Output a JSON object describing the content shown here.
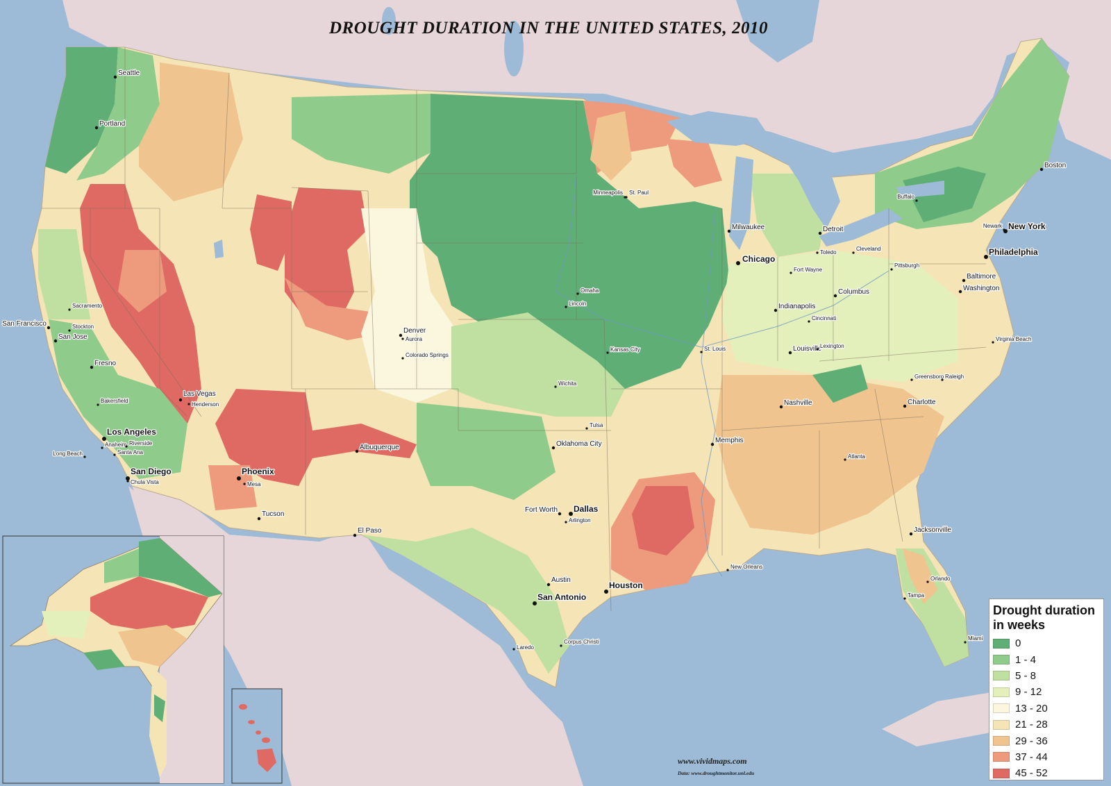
{
  "title": "DROUGHT DURATION IN THE UNITED STATES, 2010",
  "credits": {
    "site": "www.vividmaps.com",
    "source": "Data: www.droughtmonitor.unl.edu"
  },
  "legend": {
    "title_line1": "Drought duration",
    "title_line2": "in weeks",
    "classes": [
      {
        "label": "0",
        "color": "#5fae76"
      },
      {
        "label": "1 - 4",
        "color": "#8fcb8a"
      },
      {
        "label": "5 - 8",
        "color": "#bfe0a0"
      },
      {
        "label": "9 - 12",
        "color": "#e4f0bb"
      },
      {
        "label": "13 - 20",
        "color": "#fbf7df"
      },
      {
        "label": "21 - 28",
        "color": "#f4e4b6"
      },
      {
        "label": "29 - 36",
        "color": "#efc48f"
      },
      {
        "label": "37 - 44",
        "color": "#ee9a7c"
      },
      {
        "label": "45 - 52",
        "color": "#de6a63"
      }
    ]
  },
  "cities": [
    {
      "name": "Seattle",
      "size": "m"
    },
    {
      "name": "Portland",
      "size": "m"
    },
    {
      "name": "Sacramento",
      "size": "s"
    },
    {
      "name": "San Francisco",
      "size": "m"
    },
    {
      "name": "Stockton",
      "size": "s"
    },
    {
      "name": "San Jose",
      "size": "m"
    },
    {
      "name": "Fresno",
      "size": "m"
    },
    {
      "name": "Bakersfield",
      "size": "s"
    },
    {
      "name": "Los Angeles",
      "size": "l"
    },
    {
      "name": "Anaheim",
      "size": "s"
    },
    {
      "name": "Riverside",
      "size": "s"
    },
    {
      "name": "Long Beach",
      "size": "s"
    },
    {
      "name": "Santa Ana",
      "size": "s"
    },
    {
      "name": "San Diego",
      "size": "l"
    },
    {
      "name": "Chula Vista",
      "size": "s"
    },
    {
      "name": "Las Vegas",
      "size": "m"
    },
    {
      "name": "Henderson",
      "size": "s"
    },
    {
      "name": "Phoenix",
      "size": "l"
    },
    {
      "name": "Mesa",
      "size": "s"
    },
    {
      "name": "Tucson",
      "size": "m"
    },
    {
      "name": "Albuquerque",
      "size": "m"
    },
    {
      "name": "El Paso",
      "size": "m"
    },
    {
      "name": "Denver",
      "size": "m"
    },
    {
      "name": "Aurora",
      "size": "s"
    },
    {
      "name": "Colorado Springs",
      "size": "s"
    },
    {
      "name": "Minneapolis",
      "size": "s"
    },
    {
      "name": "St. Paul",
      "size": "s"
    },
    {
      "name": "Omaha",
      "size": "s"
    },
    {
      "name": "Lincoln",
      "size": "s"
    },
    {
      "name": "Kansas City",
      "size": "s"
    },
    {
      "name": "Wichita",
      "size": "s"
    },
    {
      "name": "Tulsa",
      "size": "s"
    },
    {
      "name": "Oklahoma City",
      "size": "m"
    },
    {
      "name": "Fort Worth",
      "size": "m"
    },
    {
      "name": "Dallas",
      "size": "l"
    },
    {
      "name": "Arlington",
      "size": "s"
    },
    {
      "name": "Austin",
      "size": "m"
    },
    {
      "name": "San Antonio",
      "size": "l"
    },
    {
      "name": "Houston",
      "size": "l"
    },
    {
      "name": "Laredo",
      "size": "s"
    },
    {
      "name": "Corpus Christi",
      "size": "s"
    },
    {
      "name": "New Orleans",
      "size": "s"
    },
    {
      "name": "Memphis",
      "size": "m"
    },
    {
      "name": "Nashville",
      "size": "m"
    },
    {
      "name": "St. Louis",
      "size": "s"
    },
    {
      "name": "Chicago",
      "size": "l"
    },
    {
      "name": "Milwaukee",
      "size": "m"
    },
    {
      "name": "Detroit",
      "size": "m"
    },
    {
      "name": "Toledo",
      "size": "s"
    },
    {
      "name": "Fort Wayne",
      "size": "s"
    },
    {
      "name": "Indianapolis",
      "size": "m"
    },
    {
      "name": "Columbus",
      "size": "m"
    },
    {
      "name": "Cincinnati",
      "size": "s"
    },
    {
      "name": "Louisville",
      "size": "m"
    },
    {
      "name": "Lexington",
      "size": "s"
    },
    {
      "name": "Cleveland",
      "size": "s"
    },
    {
      "name": "Pittsburgh",
      "size": "s"
    },
    {
      "name": "Buffalo",
      "size": "s"
    },
    {
      "name": "Boston",
      "size": "m"
    },
    {
      "name": "Newark",
      "size": "s"
    },
    {
      "name": "New York",
      "size": "l"
    },
    {
      "name": "Philadelphia",
      "size": "l"
    },
    {
      "name": "Baltimore",
      "size": "m"
    },
    {
      "name": "Washington",
      "size": "m"
    },
    {
      "name": "Virginia Beach",
      "size": "s"
    },
    {
      "name": "Greensboro",
      "size": "s"
    },
    {
      "name": "Raleigh",
      "size": "s"
    },
    {
      "name": "Charlotte",
      "size": "m"
    },
    {
      "name": "Atlanta",
      "size": "s"
    },
    {
      "name": "Jacksonville",
      "size": "m"
    },
    {
      "name": "Orlando",
      "size": "s"
    },
    {
      "name": "Tampa",
      "size": "s"
    },
    {
      "name": "Miami",
      "size": "s"
    }
  ]
}
